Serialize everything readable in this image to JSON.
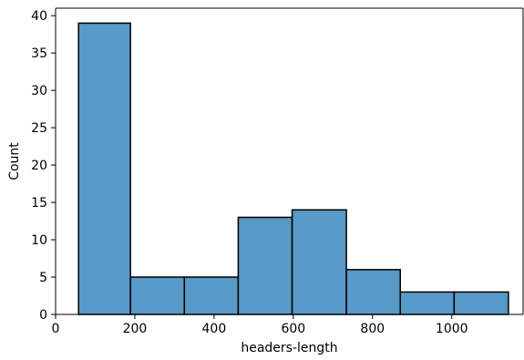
{
  "chart_data": {
    "type": "histogram",
    "title": "",
    "xlabel": "headers-length",
    "ylabel": "Count",
    "xlim": [
      0,
      1180
    ],
    "ylim": [
      0,
      41
    ],
    "xticks": [
      0,
      200,
      400,
      600,
      800,
      1000
    ],
    "yticks": [
      0,
      5,
      10,
      15,
      20,
      25,
      30,
      35,
      40
    ],
    "bins": [
      {
        "start": 58,
        "end": 189,
        "count": 39
      },
      {
        "start": 189,
        "end": 325,
        "count": 5
      },
      {
        "start": 325,
        "end": 461,
        "count": 5
      },
      {
        "start": 461,
        "end": 597,
        "count": 13
      },
      {
        "start": 597,
        "end": 734,
        "count": 14
      },
      {
        "start": 734,
        "end": 870,
        "count": 6
      },
      {
        "start": 870,
        "end": 1006,
        "count": 3
      },
      {
        "start": 1006,
        "end": 1143,
        "count": 3
      }
    ],
    "grid": false,
    "colors": {
      "bar_fill": "#5799c7",
      "bar_edge": "#000000",
      "axis": "#000000"
    }
  }
}
